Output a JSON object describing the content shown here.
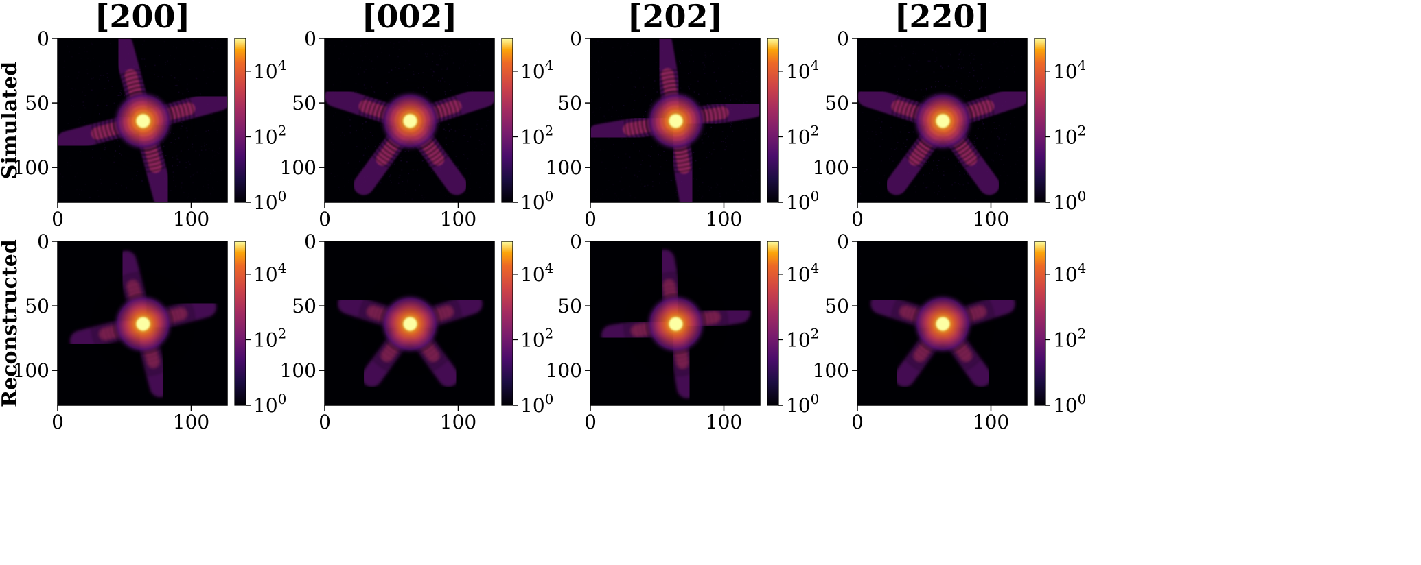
{
  "figure": {
    "column_titles": [
      "[200]",
      "[002]",
      "[202]",
      "[2̅2̅0]"
    ],
    "column_titles_display": [
      {
        "open": "[",
        "body": "200",
        "close": "]",
        "bar": null
      },
      {
        "open": "[",
        "body": "002",
        "close": "]",
        "bar": null
      },
      {
        "open": "[",
        "body": "202",
        "close": "]",
        "bar": null
      },
      {
        "open": "[",
        "body": "220",
        "close": "]",
        "bar": 1
      }
    ],
    "row_labels": [
      "Simulated",
      "Reconstructed"
    ]
  },
  "chart_data": {
    "type": "heatmap",
    "grid": "off",
    "colormap": "inferno",
    "color_scale": "log",
    "colorbar_range": [
      1,
      100000
    ],
    "colorbar_ticks": [
      {
        "value": 1,
        "base": "10",
        "exp": "0"
      },
      {
        "value": 100,
        "base": "10",
        "exp": "2"
      },
      {
        "value": 10000,
        "base": "10",
        "exp": "4"
      }
    ],
    "x_range": [
      0,
      127
    ],
    "y_range": [
      0,
      127
    ],
    "x_ticks": [
      0,
      100
    ],
    "y_ticks": [
      0,
      50,
      100
    ],
    "panels": [
      {
        "row": "Simulated",
        "col": "[200]",
        "center": [
          64,
          64
        ],
        "arms": 4,
        "arm_angle": 15,
        "noise": true
      },
      {
        "row": "Simulated",
        "col": "[002]",
        "center": [
          64,
          64
        ],
        "arms": 5,
        "arm_angle": 90,
        "noise": true
      },
      {
        "row": "Simulated",
        "col": "[202]",
        "center": [
          64,
          64
        ],
        "arms": 4,
        "arm_angle": 10,
        "noise": true
      },
      {
        "row": "Simulated",
        "col": "[2̅2̅0]",
        "center": [
          64,
          64
        ],
        "arms": 5,
        "arm_angle": 90,
        "noise": true
      },
      {
        "row": "Reconstructed",
        "col": "[200]",
        "center": [
          64,
          64
        ],
        "arms": 4,
        "arm_angle": 15,
        "noise": false
      },
      {
        "row": "Reconstructed",
        "col": "[002]",
        "center": [
          64,
          64
        ],
        "arms": 5,
        "arm_angle": 90,
        "noise": false
      },
      {
        "row": "Reconstructed",
        "col": "[202]",
        "center": [
          64,
          64
        ],
        "arms": 4,
        "arm_angle": 10,
        "noise": false
      },
      {
        "row": "Reconstructed",
        "col": "[2̅2̅0]",
        "center": [
          64,
          64
        ],
        "arms": 5,
        "arm_angle": 90,
        "noise": false
      }
    ]
  }
}
